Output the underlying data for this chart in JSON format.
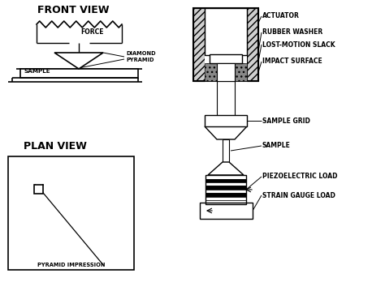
{
  "bg_color": "#ffffff",
  "line_color": "#000000",
  "font_family": "DejaVu Sans",
  "title_fontsize": 9,
  "label_fontsize": 5.5,
  "labels": {
    "front_view": "FRONT VIEW",
    "plan_view": "PLAN VIEW",
    "force": "FORCE",
    "sample_left": "SAMPLE",
    "diamond_pyramid": "DIAMOND\nPYRAMID",
    "pyramid_impression": "PYRAMID IMPRESSION",
    "actuator": "ACTUATOR",
    "rubber_washer": "RUBBER WASHER",
    "lost_motion": "LOST-MOTION SLACK",
    "impact_surface": "IMPACT SURFACE",
    "sample_grid": "SAMPLE GRID",
    "sample_right": "SAMPLE",
    "piezoelectric": "PIEZOELECTRIC LOAD",
    "strain_gauge": "STRAIN GAUGE LOAD"
  }
}
